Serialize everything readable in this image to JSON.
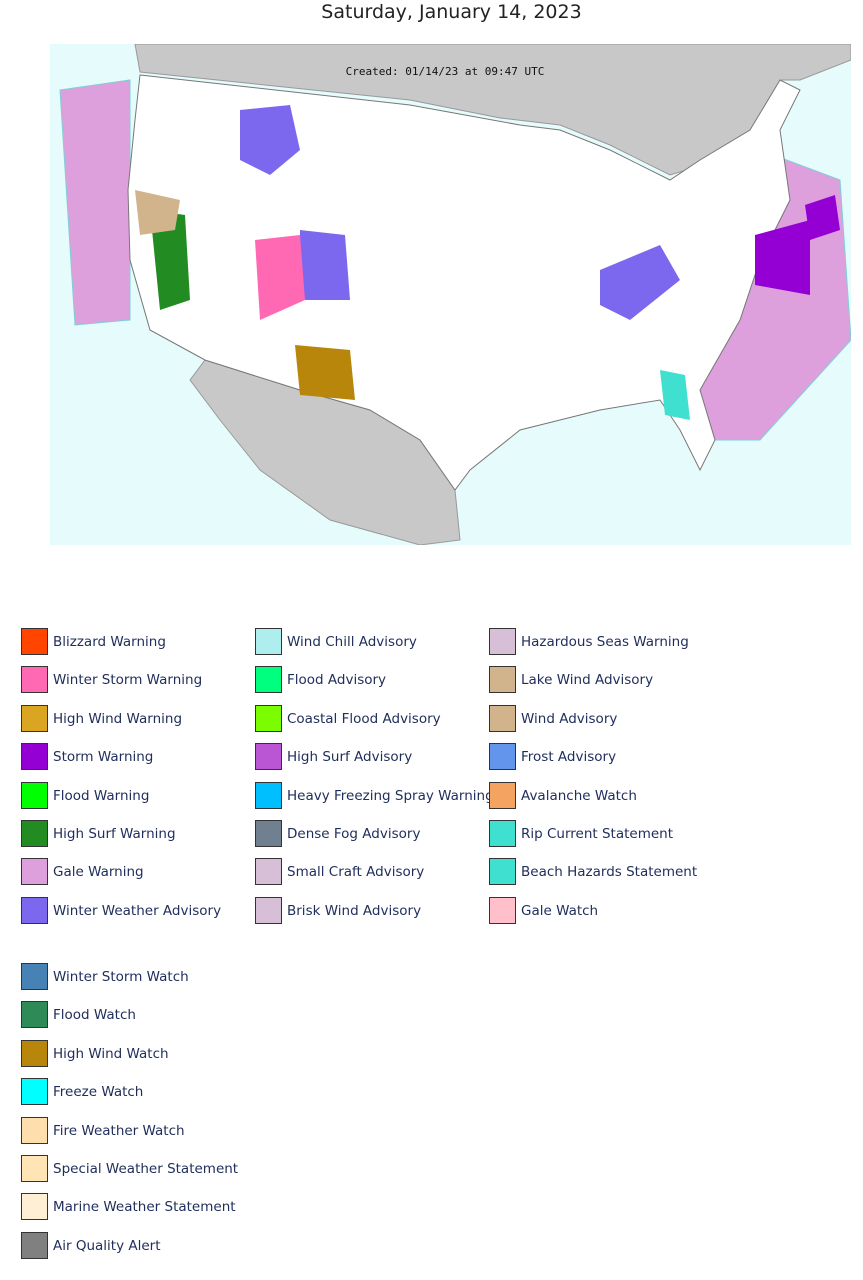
{
  "header": {
    "title": "Saturday, January 14, 2023"
  },
  "map": {
    "caption": "Created: 01/14/23 at 09:47 UTC"
  },
  "legend": {
    "groups": [
      {
        "items": [
          {
            "label": "Blizzard Warning",
            "color": "#FF4500"
          },
          {
            "label": "Winter Storm Warning",
            "color": "#FF69B4"
          },
          {
            "label": "High Wind Warning",
            "color": "#DAA520"
          },
          {
            "label": "Storm Warning",
            "color": "#9400D3"
          },
          {
            "label": "Flood Warning",
            "color": "#00FF00"
          },
          {
            "label": "High Surf Warning",
            "color": "#228B22"
          },
          {
            "label": "Gale Warning",
            "color": "#DDA0DD"
          },
          {
            "label": "Winter Weather Advisory",
            "color": "#7B68EE"
          },
          {
            "label": "Wind Chill Advisory",
            "color": "#AFEEEE"
          },
          {
            "label": "Flood Advisory",
            "color": "#00FF7F"
          },
          {
            "label": "Coastal Flood Advisory",
            "color": "#7CFC00"
          },
          {
            "label": "High Surf Advisory",
            "color": "#BA55D3"
          },
          {
            "label": "Heavy Freezing Spray Warning",
            "color": "#00BFFF"
          },
          {
            "label": "Dense Fog Advisory",
            "color": "#708090"
          },
          {
            "label": "Small Craft Advisory",
            "color": "#D8BFD8"
          },
          {
            "label": "Brisk Wind Advisory",
            "color": "#D8BFD8"
          },
          {
            "label": "Hazardous Seas Warning",
            "color": "#D8BFD8"
          },
          {
            "label": "Lake Wind Advisory",
            "color": "#D2B48C"
          },
          {
            "label": "Wind Advisory",
            "color": "#D2B48C"
          },
          {
            "label": "Frost Advisory",
            "color": "#6495ED"
          },
          {
            "label": "Avalanche Watch",
            "color": "#F4A460"
          },
          {
            "label": "Rip Current Statement",
            "color": "#40E0D0"
          },
          {
            "label": "Beach Hazards Statement",
            "color": "#40E0D0"
          },
          {
            "label": "Gale Watch",
            "color": "#FFC0CB"
          }
        ]
      },
      {
        "items": [
          {
            "label": "Winter Storm Watch",
            "color": "#4682B4"
          },
          {
            "label": "Flood Watch",
            "color": "#2E8B57"
          },
          {
            "label": "High Wind Watch",
            "color": "#B8860B"
          },
          {
            "label": "Freeze Watch",
            "color": "#00FFFF"
          },
          {
            "label": "Fire Weather Watch",
            "color": "#FFDEAD"
          },
          {
            "label": "Special Weather Statement",
            "color": "#FFE4B5"
          },
          {
            "label": "Marine Weather Statement",
            "color": "#FFEFD5"
          },
          {
            "label": "Air Quality Alert",
            "color": "#808080"
          }
        ]
      }
    ]
  }
}
